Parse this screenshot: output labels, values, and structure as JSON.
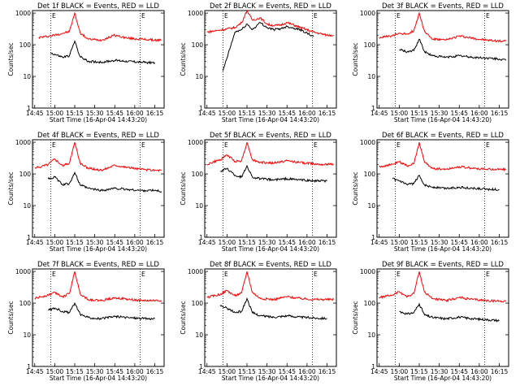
{
  "x_tick_labels": [
    "14:45",
    "15:00",
    "15:15",
    "15:30",
    "15:45",
    "16:00",
    "16:15"
  ],
  "y_tick_labels": [
    "1",
    "10",
    "100",
    "1000"
  ],
  "ylabel": "Counts/sec",
  "xlabel": "Start Time (16-Apr-04 14:43:20)",
  "marker_label": "E",
  "colors": {
    "events": "#000000",
    "lld": "#ff0000"
  },
  "chart_data": [
    {
      "type": "line",
      "title": "Det 1f BLACK = Events, RED = LLD",
      "xlim": [
        "14:43:20",
        "16:22"
      ],
      "ylim": [
        1,
        1200
      ],
      "yscale": "log",
      "grid": false,
      "markers": [
        "14:57",
        "16:04"
      ],
      "x": [
        "14:48",
        "14:57",
        "15:06",
        "15:11",
        "15:15",
        "15:19",
        "15:25",
        "15:35",
        "15:45",
        "15:55",
        "16:05",
        "16:15",
        "16:20"
      ],
      "series": [
        {
          "values": [
            170,
            190,
            230,
            260,
            1000,
            240,
            150,
            140,
            200,
            160,
            150,
            140,
            140
          ]
        },
        {
          "values": [
            null,
            55,
            40,
            45,
            130,
            42,
            30,
            28,
            32,
            30,
            28,
            27,
            null
          ]
        }
      ]
    },
    {
      "type": "line",
      "title": "Det 2f BLACK = Events, RED = LLD",
      "xlim": [
        "14:43:20",
        "16:22"
      ],
      "ylim": [
        1,
        1200
      ],
      "yscale": "log",
      "grid": false,
      "markers": [
        "14:57",
        "16:04"
      ],
      "x": [
        "14:45",
        "14:52",
        "14:57",
        "15:06",
        "15:11",
        "15:15",
        "15:19",
        "15:25",
        "15:30",
        "15:35",
        "15:40",
        "15:45",
        "15:55",
        "16:05",
        "16:15",
        "16:20"
      ],
      "series": [
        {
          "values": [
            250,
            280,
            300,
            350,
            500,
            1200,
            600,
            700,
            450,
            400,
            420,
            500,
            350,
            250,
            200,
            200
          ]
        },
        {
          "values": [
            null,
            null,
            15,
            250,
            300,
            450,
            300,
            500,
            350,
            300,
            320,
            380,
            300,
            180,
            null,
            null
          ]
        }
      ]
    },
    {
      "type": "line",
      "title": "Det 3f BLACK = Events, RED = LLD",
      "xlim": [
        "14:43:20",
        "16:22"
      ],
      "ylim": [
        1,
        1200
      ],
      "yscale": "log",
      "grid": false,
      "markers": [
        "14:57",
        "16:04"
      ],
      "x": [
        "14:45",
        "14:55",
        "15:00",
        "15:06",
        "15:11",
        "15:15",
        "15:19",
        "15:25",
        "15:35",
        "15:45",
        "15:55",
        "16:05",
        "16:15",
        "16:20"
      ],
      "series": [
        {
          "values": [
            170,
            190,
            230,
            220,
            280,
            1000,
            260,
            150,
            140,
            190,
            160,
            140,
            130,
            130
          ]
        },
        {
          "values": [
            null,
            null,
            70,
            60,
            65,
            150,
            60,
            45,
            40,
            45,
            40,
            38,
            35,
            32
          ]
        }
      ]
    },
    {
      "type": "line",
      "title": "Det 4f BLACK = Events, RED = LLD",
      "xlim": [
        "14:43:20",
        "16:22"
      ],
      "ylim": [
        1,
        1200
      ],
      "yscale": "log",
      "grid": false,
      "markers": [
        "14:57",
        "16:04"
      ],
      "x": [
        "14:45",
        "14:55",
        "15:00",
        "15:06",
        "15:11",
        "15:15",
        "15:19",
        "15:25",
        "15:35",
        "15:45",
        "15:55",
        "16:05",
        "16:15",
        "16:20"
      ],
      "series": [
        {
          "values": [
            150,
            200,
            300,
            180,
            220,
            1000,
            220,
            150,
            130,
            190,
            160,
            140,
            130,
            130
          ]
        },
        {
          "values": [
            null,
            70,
            80,
            45,
            50,
            110,
            45,
            35,
            30,
            35,
            32,
            30,
            30,
            28
          ]
        }
      ]
    },
    {
      "type": "line",
      "title": "Det 5f BLACK = Events, RED = LLD",
      "xlim": [
        "14:43:20",
        "16:22"
      ],
      "ylim": [
        1,
        1200
      ],
      "yscale": "log",
      "grid": false,
      "markers": [
        "14:57",
        "16:04"
      ],
      "x": [
        "14:45",
        "14:55",
        "15:00",
        "15:06",
        "15:11",
        "15:15",
        "15:19",
        "15:25",
        "15:35",
        "15:45",
        "15:55",
        "16:05",
        "16:15",
        "16:20"
      ],
      "series": [
        {
          "values": [
            200,
            280,
            400,
            250,
            260,
            1000,
            280,
            230,
            220,
            260,
            230,
            210,
            200,
            200
          ]
        },
        {
          "values": [
            null,
            120,
            150,
            90,
            80,
            180,
            80,
            70,
            65,
            70,
            65,
            60,
            60,
            null
          ]
        }
      ]
    },
    {
      "type": "line",
      "title": "Det 6f BLACK = Events, RED = LLD",
      "xlim": [
        "14:43:20",
        "16:22"
      ],
      "ylim": [
        1,
        1200
      ],
      "yscale": "log",
      "grid": false,
      "markers": [
        "14:57",
        "16:04"
      ],
      "x": [
        "14:45",
        "14:55",
        "15:00",
        "15:06",
        "15:11",
        "15:15",
        "15:19",
        "15:25",
        "15:35",
        "15:45",
        "15:55",
        "16:05",
        "16:15",
        "16:20"
      ],
      "series": [
        {
          "values": [
            170,
            200,
            240,
            180,
            210,
            1000,
            230,
            150,
            140,
            170,
            150,
            140,
            140,
            140
          ]
        },
        {
          "values": [
            null,
            70,
            60,
            45,
            50,
            90,
            45,
            38,
            35,
            38,
            35,
            33,
            32,
            null
          ]
        }
      ]
    },
    {
      "type": "line",
      "title": "Det 7f BLACK = Events, RED = LLD",
      "xlim": [
        "14:43:20",
        "16:22"
      ],
      "ylim": [
        1,
        1200
      ],
      "yscale": "log",
      "grid": false,
      "markers": [
        "14:57",
        "16:04"
      ],
      "x": [
        "14:45",
        "14:55",
        "15:00",
        "15:06",
        "15:11",
        "15:15",
        "15:19",
        "15:25",
        "15:35",
        "15:45",
        "15:55",
        "16:05",
        "16:15",
        "16:20"
      ],
      "series": [
        {
          "values": [
            140,
            180,
            220,
            160,
            200,
            1000,
            200,
            130,
            120,
            150,
            130,
            120,
            120,
            120
          ]
        },
        {
          "values": [
            null,
            60,
            70,
            55,
            50,
            100,
            45,
            35,
            32,
            38,
            35,
            33,
            32,
            null
          ]
        }
      ]
    },
    {
      "type": "line",
      "title": "Det 8f BLACK = Events, RED = LLD",
      "xlim": [
        "14:43:20",
        "16:22"
      ],
      "ylim": [
        1,
        1200
      ],
      "yscale": "log",
      "grid": false,
      "markers": [
        "14:57",
        "16:04"
      ],
      "x": [
        "14:45",
        "14:55",
        "15:00",
        "15:06",
        "15:11",
        "15:15",
        "15:19",
        "15:25",
        "15:35",
        "15:45",
        "15:55",
        "16:05",
        "16:15",
        "16:20"
      ],
      "series": [
        {
          "values": [
            150,
            190,
            250,
            170,
            210,
            1000,
            220,
            140,
            130,
            160,
            140,
            130,
            130,
            130
          ]
        },
        {
          "values": [
            null,
            80,
            70,
            50,
            55,
            140,
            50,
            40,
            36,
            40,
            36,
            34,
            33,
            null
          ]
        }
      ]
    },
    {
      "type": "line",
      "title": "Det 9f BLACK = Events, RED = LLD",
      "xlim": [
        "14:43:20",
        "16:22"
      ],
      "ylim": [
        1,
        1200
      ],
      "yscale": "log",
      "grid": false,
      "markers": [
        "14:57",
        "16:04"
      ],
      "x": [
        "14:45",
        "14:55",
        "15:00",
        "15:06",
        "15:11",
        "15:15",
        "15:19",
        "15:25",
        "15:35",
        "15:45",
        "15:55",
        "16:05",
        "16:15",
        "16:20"
      ],
      "series": [
        {
          "values": [
            150,
            180,
            230,
            160,
            200,
            1000,
            220,
            140,
            120,
            150,
            130,
            120,
            115,
            115
          ]
        },
        {
          "values": [
            null,
            null,
            55,
            45,
            50,
            95,
            42,
            35,
            32,
            36,
            32,
            30,
            28,
            null
          ]
        }
      ]
    }
  ]
}
